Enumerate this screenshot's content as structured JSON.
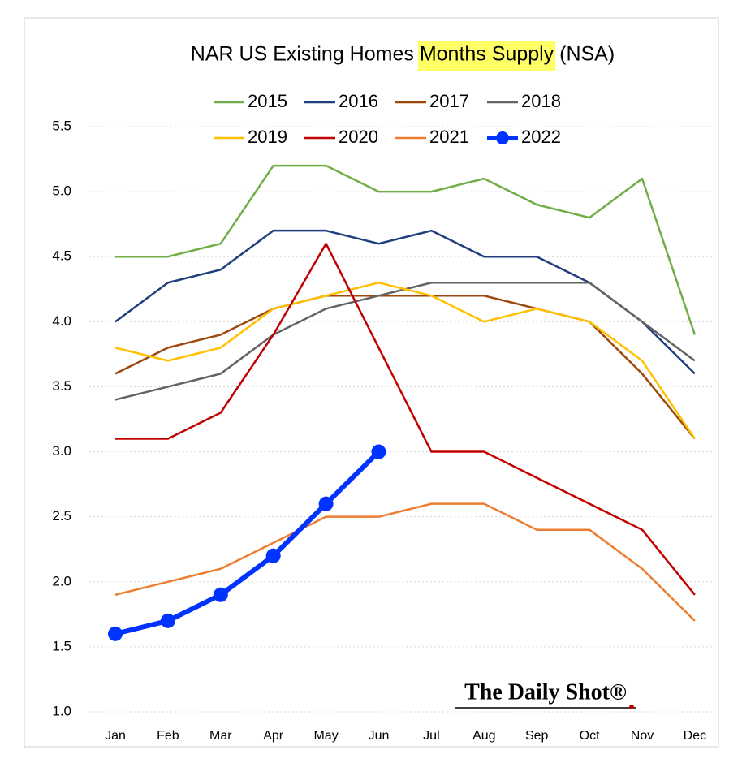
{
  "chart_data": {
    "type": "line",
    "title": "NAR US Existing Homes Months Supply (NSA)",
    "highlight": "Months Supply",
    "watermark": "The Daily Shot®",
    "categories": [
      "Jan",
      "Feb",
      "Mar",
      "Apr",
      "May",
      "Jun",
      "Jul",
      "Aug",
      "Sep",
      "Oct",
      "Nov",
      "Dec"
    ],
    "ylim": [
      1.0,
      5.5
    ],
    "yticks": [
      {
        "value": 1.0,
        "label": "1.0"
      },
      1.5,
      {
        "value": 2.0,
        "label": "2.0"
      },
      2.5,
      {
        "value": 3.0,
        "label": "3.0"
      },
      3.5,
      {
        "value": 4.0,
        "label": "4.0"
      },
      4.5,
      {
        "value": 5.0,
        "label": "5.0"
      },
      5.5
    ],
    "grid": true,
    "series": [
      {
        "name": "2015",
        "color": "#70ad47",
        "values": [
          4.5,
          4.5,
          4.6,
          5.2,
          5.2,
          5.0,
          5.0,
          5.1,
          4.9,
          4.8,
          5.1,
          3.9
        ]
      },
      {
        "name": "2016",
        "color": "#1f3f7f",
        "values": [
          4.0,
          4.3,
          4.4,
          4.7,
          4.7,
          4.6,
          4.7,
          4.5,
          4.5,
          4.3,
          4.0,
          3.6
        ]
      },
      {
        "name": "2017",
        "color": "#9e480e",
        "values": [
          3.6,
          3.8,
          3.9,
          4.1,
          4.2,
          4.2,
          4.2,
          4.2,
          4.1,
          4.0,
          3.6,
          3.1
        ]
      },
      {
        "name": "2018",
        "color": "#636363",
        "values": [
          3.4,
          3.5,
          3.6,
          3.9,
          4.1,
          4.2,
          4.3,
          4.3,
          4.3,
          4.3,
          4.0,
          3.7
        ]
      },
      {
        "name": "2019",
        "color": "#ffc000",
        "values": [
          3.8,
          3.7,
          3.8,
          4.1,
          4.2,
          4.3,
          4.2,
          4.0,
          4.1,
          4.0,
          3.7,
          3.1
        ]
      },
      {
        "name": "2020",
        "color": "#c00000",
        "values": [
          3.1,
          3.1,
          3.3,
          3.9,
          4.6,
          3.8,
          3.0,
          3.0,
          2.8,
          2.6,
          2.4,
          1.9
        ]
      },
      {
        "name": "2021",
        "color": "#ed7d31",
        "values": [
          1.9,
          2.0,
          2.1,
          2.3,
          2.5,
          2.5,
          2.6,
          2.6,
          2.4,
          2.4,
          2.1,
          1.7
        ]
      },
      {
        "name": "2022",
        "color": "#0033ff",
        "markers": true,
        "values": [
          1.6,
          1.7,
          1.9,
          2.2,
          2.6,
          3.0,
          null,
          null,
          null,
          null,
          null,
          null
        ]
      }
    ]
  }
}
